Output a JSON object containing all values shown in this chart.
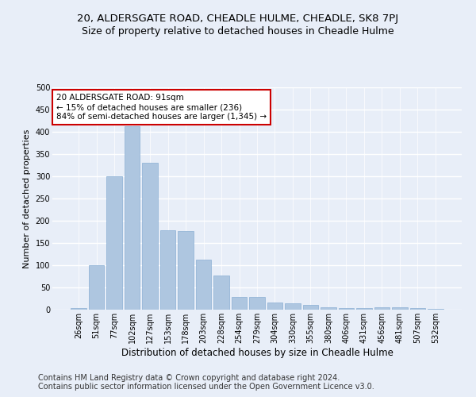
{
  "title": "20, ALDERSGATE ROAD, CHEADLE HULME, CHEADLE, SK8 7PJ",
  "subtitle": "Size of property relative to detached houses in Cheadle Hulme",
  "xlabel": "Distribution of detached houses by size in Cheadle Hulme",
  "ylabel": "Number of detached properties",
  "categories": [
    "26sqm",
    "51sqm",
    "77sqm",
    "102sqm",
    "127sqm",
    "153sqm",
    "178sqm",
    "203sqm",
    "228sqm",
    "254sqm",
    "279sqm",
    "304sqm",
    "330sqm",
    "355sqm",
    "380sqm",
    "406sqm",
    "431sqm",
    "456sqm",
    "481sqm",
    "507sqm",
    "532sqm"
  ],
  "values": [
    3,
    100,
    300,
    413,
    330,
    178,
    177,
    112,
    77,
    28,
    28,
    16,
    15,
    10,
    5,
    4,
    4,
    6,
    5,
    3,
    2
  ],
  "bar_color": "#aec6e0",
  "bar_edge_color": "#8aafd4",
  "annotation_text": "20 ALDERSGATE ROAD: 91sqm\n← 15% of detached houses are smaller (236)\n84% of semi-detached houses are larger (1,345) →",
  "annotation_box_edge_color": "#cc0000",
  "annotation_box_face_color": "#ffffff",
  "ylim": [
    0,
    500
  ],
  "yticks": [
    0,
    50,
    100,
    150,
    200,
    250,
    300,
    350,
    400,
    450,
    500
  ],
  "background_color": "#e8eef8",
  "axes_background_color": "#e8eef8",
  "grid_color": "#ffffff",
  "footer1": "Contains HM Land Registry data © Crown copyright and database right 2024.",
  "footer2": "Contains public sector information licensed under the Open Government Licence v3.0.",
  "title_fontsize": 9.5,
  "subtitle_fontsize": 9,
  "xlabel_fontsize": 8.5,
  "ylabel_fontsize": 8,
  "tick_fontsize": 7,
  "footer_fontsize": 7,
  "annot_fontsize": 7.5
}
